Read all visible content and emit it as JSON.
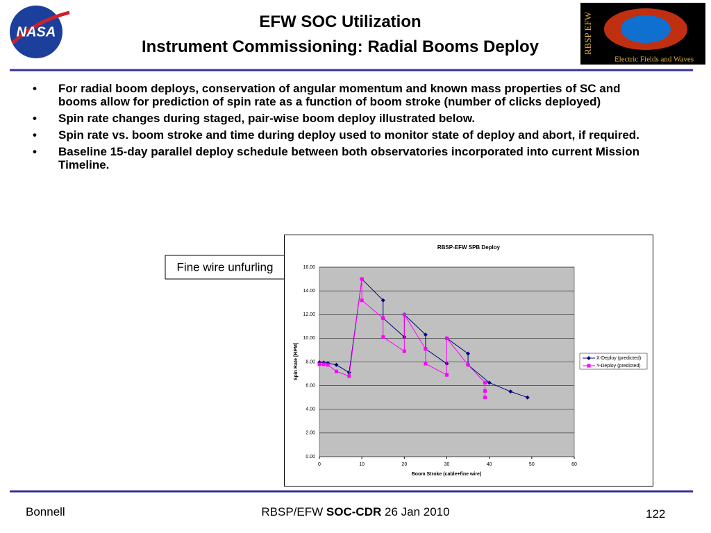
{
  "header": {
    "title_line1": "EFW SOC Utilization",
    "title_line2": "Instrument Commissioning: Radial Booms Deploy",
    "logo_left": "NASA",
    "logo_right_top": "RBSP EFW",
    "logo_right_bottom": "Electric Fields and Waves"
  },
  "bullets": [
    "For radial boom deploys, conservation of angular momentum and known mass properties of SC and booms allow for prediction of spin rate as a function of boom stroke (number of clicks deployed)",
    "Spin rate changes during staged, pair-wise boom deploy illustrated below.",
    "Spin rate vs. boom stroke and time during deploy used to monitor state of deploy and abort, if required.",
    "Baseline 15-day parallel deploy schedule between both observatories incorporated into current Mission Timeline."
  ],
  "callout": "Fine wire unfurling",
  "chart_data": {
    "type": "scatter",
    "title": "RBSP-EFW SPB Deploy",
    "xlabel": "Boom Stroke (cable+fine wire)",
    "ylabel": "Spin Rate [RPM]",
    "xlim": [
      0,
      60
    ],
    "xticks": [
      0,
      10,
      20,
      30,
      40,
      50,
      60
    ],
    "ylim": [
      0,
      16
    ],
    "yticks": [
      {
        "value": 0,
        "label": "0.00"
      },
      {
        "value": 2,
        "label": "2.00"
      },
      {
        "value": 4,
        "label": "4.00"
      },
      {
        "value": 6,
        "label": "6.00"
      },
      {
        "value": 8,
        "label": "8.00"
      },
      {
        "value": 10,
        "label": "10.00"
      },
      {
        "value": 12,
        "label": "12.00"
      },
      {
        "value": 14,
        "label": "14.00"
      },
      {
        "value": 16,
        "label": "16.00"
      }
    ],
    "grid": true,
    "legend": "right",
    "series": [
      {
        "name": "X-Deploy (predicted)",
        "color": "#000080",
        "marker": "diamond",
        "x": [
          0,
          1,
          2,
          4,
          7,
          10,
          15,
          15,
          20,
          20,
          25,
          25,
          30,
          30,
          35,
          35,
          40,
          45,
          49
        ],
        "values": [
          7.97,
          7.95,
          7.9,
          7.75,
          7.1,
          15.0,
          13.2,
          11.7,
          10.1,
          12.0,
          10.3,
          9.1,
          7.85,
          10.0,
          8.7,
          7.75,
          6.25,
          5.5,
          5.0
        ]
      },
      {
        "name": "Y-Deploy (predicted)",
        "color": "#ff00ff",
        "marker": "square",
        "x": [
          0,
          1,
          2,
          4,
          7,
          10,
          10,
          15,
          15,
          20,
          20,
          25,
          25,
          30,
          30,
          35,
          39,
          39,
          39
        ],
        "values": [
          7.8,
          7.8,
          7.75,
          7.2,
          6.8,
          15.0,
          13.2,
          11.7,
          10.1,
          8.9,
          12.0,
          9.1,
          7.85,
          6.9,
          10.0,
          7.75,
          6.25,
          5.55,
          5.0
        ]
      }
    ]
  },
  "footer": {
    "author": "Bonnell",
    "center_a": "RBSP/EFW",
    "center_b": "SOC-CDR",
    "center_c": "26 Jan 2010",
    "page": "122"
  }
}
